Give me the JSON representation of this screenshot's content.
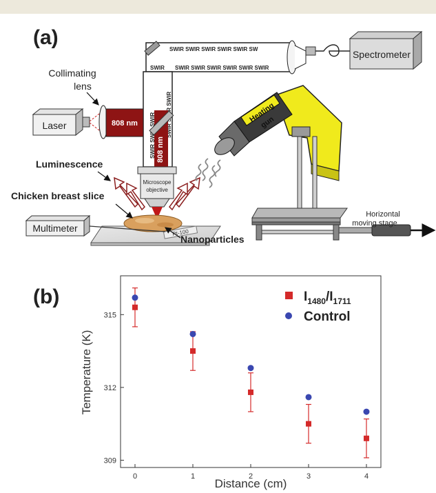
{
  "panel_a": {
    "label": "(a)",
    "spectrometer": "Spectrometer",
    "laser": "Laser",
    "collimating_lens_1": "Collimating",
    "collimating_lens_2": "lens",
    "wavelength": "808 nm",
    "swir": "SWIR",
    "swir_row": "SWIR SWIR SWIR SWIR SWIR SW",
    "swir_row2": "SWIR SWIR SWIR SWIR SWIR SWIR",
    "swir_col": "SWIR SWIR SWIR",
    "swir_col2": "SWIR SWIR SWIR",
    "microscope_1": "Microscope",
    "microscope_2": "objective",
    "heating_gun_1": "Heating",
    "heating_gun_2": "gun",
    "luminescence": "Luminescence",
    "chicken": "Chicken breast slice",
    "multimeter": "Multimeter",
    "pt100": "Pt-100",
    "nanoparticles": "Nanoparticles",
    "stage_1": "Horizontal",
    "stage_2": "moving stage"
  },
  "panel_b": {
    "label": "(b)",
    "legend_ratio_main": "I",
    "legend_ratio_sub1": "1480",
    "legend_ratio_slash": "/I",
    "legend_ratio_sub2": "1711",
    "legend_control": "Control"
  },
  "chart_data": {
    "type": "scatter",
    "xlabel": "Distance (cm)",
    "ylabel": "Temperature (K)",
    "x": [
      0,
      1,
      2,
      3,
      4
    ],
    "x_ticks": [
      "0",
      "1",
      "2",
      "3",
      "4"
    ],
    "y_ticks": [
      "309",
      "312",
      "315"
    ],
    "xlim": [
      -0.25,
      4.25
    ],
    "ylim": [
      308.7,
      316.6
    ],
    "series": [
      {
        "name": "I1480/I1711",
        "marker": "square",
        "color": "#d42a2a",
        "values": [
          315.3,
          313.5,
          311.8,
          310.5,
          309.9
        ],
        "errors": [
          0.8,
          0.8,
          0.8,
          0.8,
          0.8
        ]
      },
      {
        "name": "Control",
        "marker": "circle",
        "color": "#3a47b0",
        "values": [
          315.7,
          314.2,
          312.8,
          311.6,
          311.0
        ]
      }
    ],
    "legend": "top-right",
    "grid": false
  }
}
